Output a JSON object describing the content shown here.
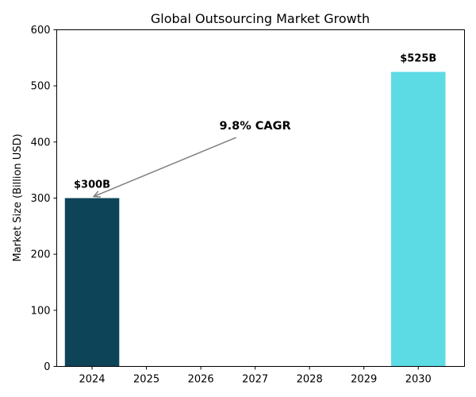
{
  "chart_data": {
    "type": "bar",
    "title": "Global Outsourcing Market Growth",
    "xlabel": "",
    "ylabel": "Market Size (Billion USD)",
    "x_ticks": [
      "2024",
      "2025",
      "2026",
      "2027",
      "2028",
      "2029",
      "2030"
    ],
    "y_ticks": [
      "0",
      "100",
      "200",
      "300",
      "400",
      "500",
      "600"
    ],
    "ylim": [
      0,
      600
    ],
    "xlim": [
      2023.35,
      2030.85
    ],
    "grid": false,
    "bars": [
      {
        "x": 2024,
        "value": 300,
        "label": "$300B",
        "color": "#0e4457"
      },
      {
        "x": 2030,
        "value": 525,
        "label": "$525B",
        "color": "#5ddbe4"
      }
    ],
    "annotation": {
      "text": "9.8% CAGR",
      "text_x": 2027.0,
      "text_y": 425,
      "arrow_target_x": 2024.0,
      "arrow_target_y": 300,
      "color": "#808080"
    }
  }
}
